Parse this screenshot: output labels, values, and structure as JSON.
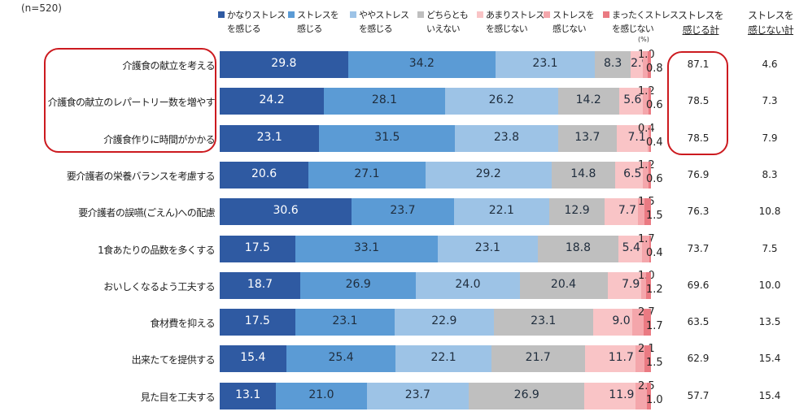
{
  "sample_label": "(n=520)",
  "unit_label": "(%)",
  "column_headers": {
    "feel_total": {
      "line1": "ストレスを",
      "line2": "感じる計"
    },
    "not_feel_total": {
      "line1": "ストレスを",
      "line2": "感じない計"
    }
  },
  "colors": {
    "c1": "#2f5aa2",
    "c2": "#5b9bd5",
    "c3": "#9dc3e6",
    "c4": "#bfbfbf",
    "c5": "#f9c4c6",
    "c6": "#f4a6ab",
    "c7": "#ea7a82",
    "highlight": "#cc1a1f"
  },
  "chart_data": {
    "type": "bar",
    "orientation": "horizontal",
    "stacked": "100%",
    "title": "",
    "xlabel": "",
    "ylabel": "",
    "xlim": [
      0,
      100
    ],
    "legend_position": "top",
    "categories": [
      "介護食の献立を考える",
      "介護食の献立のレパートリー数を増やす",
      "介護食作りに時間がかかる",
      "要介護者の栄養バランスを考慮する",
      "要介護者の誤嚥(ごえん)への配慮",
      "1食あたりの品数を多くする",
      "おいしくなるよう工夫する",
      "食材費を抑える",
      "出来たてを提供する",
      "見た目を工夫する"
    ],
    "series": [
      {
        "name": "かなりストレスを感じる",
        "legend_line1": "かなりストレス",
        "legend_line2": "を感じる",
        "color_key": "c1",
        "values": [
          29.8,
          24.2,
          23.1,
          20.6,
          30.6,
          17.5,
          18.7,
          17.5,
          15.4,
          13.1
        ]
      },
      {
        "name": "ストレスを感じる",
        "legend_line1": "ストレスを",
        "legend_line2": "感じる",
        "color_key": "c2",
        "values": [
          34.2,
          28.1,
          31.5,
          27.1,
          23.7,
          33.1,
          26.9,
          23.1,
          25.4,
          21.0
        ]
      },
      {
        "name": "ややストレスを感じる",
        "legend_line1": "ややストレス",
        "legend_line2": "を感じる",
        "color_key": "c3",
        "values": [
          23.1,
          26.2,
          23.8,
          29.2,
          22.1,
          23.1,
          24.0,
          22.9,
          22.1,
          23.7
        ]
      },
      {
        "name": "どちらともいえない",
        "legend_line1": "どちらとも",
        "legend_line2": "いえない",
        "color_key": "c4",
        "values": [
          8.3,
          14.2,
          13.7,
          14.8,
          12.9,
          18.8,
          20.4,
          23.1,
          21.7,
          26.9
        ]
      },
      {
        "name": "あまりストレスを感じない",
        "legend_line1": "あまりストレス",
        "legend_line2": "を感じない",
        "color_key": "c5",
        "values": [
          2.9,
          5.6,
          7.1,
          6.5,
          7.7,
          5.4,
          7.9,
          9.0,
          11.7,
          11.9
        ]
      },
      {
        "name": "ストレスを感じない",
        "legend_line1": "ストレスを",
        "legend_line2": "感じない",
        "color_key": "c6",
        "values": [
          1.0,
          1.2,
          0.4,
          1.2,
          1.5,
          1.7,
          1.0,
          2.7,
          2.1,
          2.5
        ]
      },
      {
        "name": "まったくストレスを感じない",
        "legend_line1": "まったくストレス",
        "legend_line2": "を感じない",
        "color_key": "c7",
        "values": [
          0.8,
          0.6,
          0.4,
          0.6,
          1.5,
          0.4,
          1.2,
          1.7,
          1.5,
          1.0
        ]
      }
    ],
    "totals_feel": [
      87.1,
      78.5,
      78.5,
      76.9,
      76.3,
      73.7,
      69.6,
      63.5,
      62.9,
      57.7
    ],
    "totals_not_feel": [
      4.6,
      7.3,
      7.9,
      8.3,
      10.8,
      7.5,
      10.0,
      13.5,
      15.4,
      15.4
    ],
    "highlighted_rows": [
      0,
      1,
      2
    ]
  }
}
